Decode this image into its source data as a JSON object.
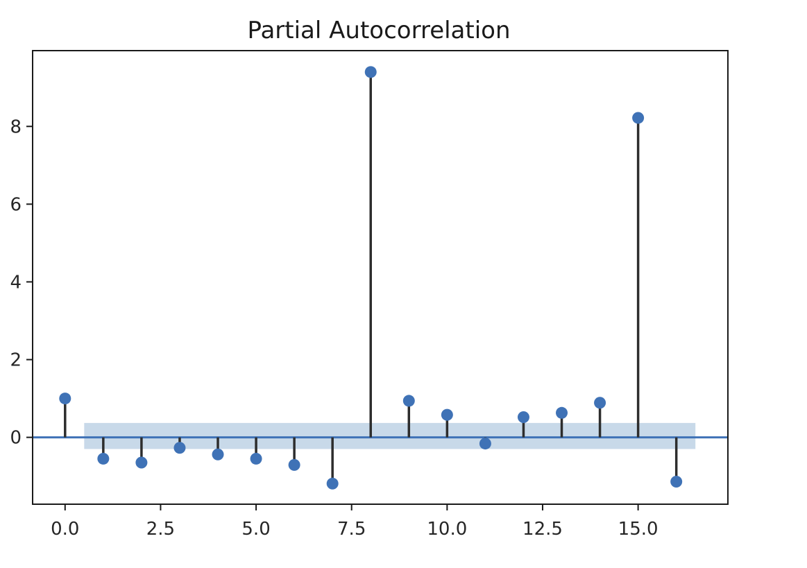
{
  "chart_data": {
    "type": "stem",
    "title": "Partial Autocorrelation",
    "xlabel": "",
    "ylabel": "",
    "xlim": [
      -0.85,
      17.35
    ],
    "ylim": [
      -1.72,
      9.95
    ],
    "x_ticks": [
      0,
      2.5,
      5,
      7.5,
      10,
      12.5,
      15
    ],
    "x_tick_labels": [
      "0.0",
      "2.5",
      "5.0",
      "7.5",
      "10.0",
      "12.5",
      "15.0"
    ],
    "y_ticks": [
      0,
      2,
      4,
      6,
      8
    ],
    "y_tick_labels": [
      "0",
      "2",
      "4",
      "6",
      "8"
    ],
    "series": [
      {
        "lags": [
          0,
          1,
          2,
          3,
          4,
          5,
          6,
          7,
          8,
          9,
          10,
          11,
          12,
          13,
          14,
          15,
          16
        ],
        "values": [
          1.0,
          -0.55,
          -0.65,
          -0.27,
          -0.44,
          -0.55,
          -0.71,
          -1.19,
          9.4,
          0.94,
          0.58,
          -0.16,
          0.52,
          0.63,
          0.89,
          8.22,
          -1.14
        ]
      }
    ],
    "confidence_band": {
      "x_range": [
        0.5,
        16.5
      ],
      "upper": 0.37,
      "lower": -0.3
    },
    "grid": false,
    "legend": "none",
    "colors": {
      "marker": "#3f72b6",
      "stem": "#2d2d2d",
      "baseline": "#3f72b6",
      "band": "#a7c1dc",
      "axes": "#1a1a1a"
    }
  }
}
